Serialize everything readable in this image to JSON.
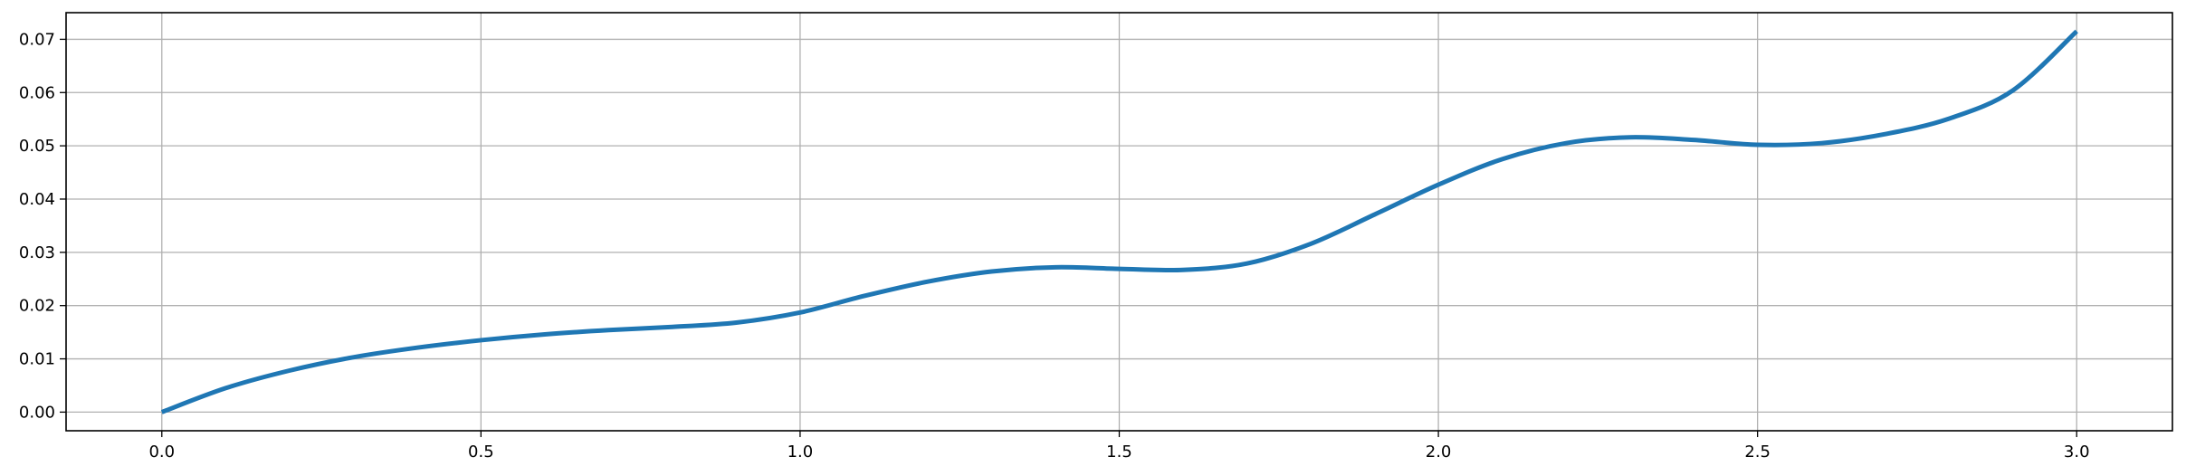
{
  "chart_data": {
    "type": "line",
    "title": "",
    "xlabel": "",
    "ylabel": "",
    "xlim": [
      -0.15,
      3.15
    ],
    "ylim": [
      -0.0035,
      0.075
    ],
    "grid": true,
    "legend": "none",
    "x_ticks": [
      {
        "value": 0.0,
        "label": "0.0"
      },
      {
        "value": 0.5,
        "label": "0.5"
      },
      {
        "value": 1.0,
        "label": "1.0"
      },
      {
        "value": 1.5,
        "label": "1.5"
      },
      {
        "value": 2.0,
        "label": "2.0"
      },
      {
        "value": 2.5,
        "label": "2.5"
      },
      {
        "value": 3.0,
        "label": "3.0"
      }
    ],
    "y_ticks": [
      {
        "value": 0.0,
        "label": "0.00"
      },
      {
        "value": 0.01,
        "label": "0.01"
      },
      {
        "value": 0.02,
        "label": "0.02"
      },
      {
        "value": 0.03,
        "label": "0.03"
      },
      {
        "value": 0.04,
        "label": "0.04"
      },
      {
        "value": 0.05,
        "label": "0.05"
      },
      {
        "value": 0.06,
        "label": "0.06"
      },
      {
        "value": 0.07,
        "label": "0.07"
      }
    ],
    "series": [
      {
        "color": "#1f77b4",
        "x": [
          0.0,
          0.1,
          0.2,
          0.3,
          0.4,
          0.5,
          0.6,
          0.7,
          0.8,
          0.9,
          1.0,
          1.1,
          1.2,
          1.3,
          1.4,
          1.5,
          1.6,
          1.7,
          1.8,
          1.9,
          2.0,
          2.1,
          2.2,
          2.3,
          2.4,
          2.5,
          2.6,
          2.7,
          2.8,
          2.9,
          3.0
        ],
        "y": [
          0.0,
          0.0045,
          0.0078,
          0.0103,
          0.0121,
          0.0135,
          0.0146,
          0.0154,
          0.016,
          0.0168,
          0.0187,
          0.0218,
          0.0245,
          0.0264,
          0.0272,
          0.0269,
          0.0267,
          0.0279,
          0.0316,
          0.0371,
          0.0427,
          0.0475,
          0.0505,
          0.0516,
          0.0511,
          0.0502,
          0.0505,
          0.0522,
          0.0551,
          0.0604,
          0.0715
        ]
      }
    ]
  }
}
